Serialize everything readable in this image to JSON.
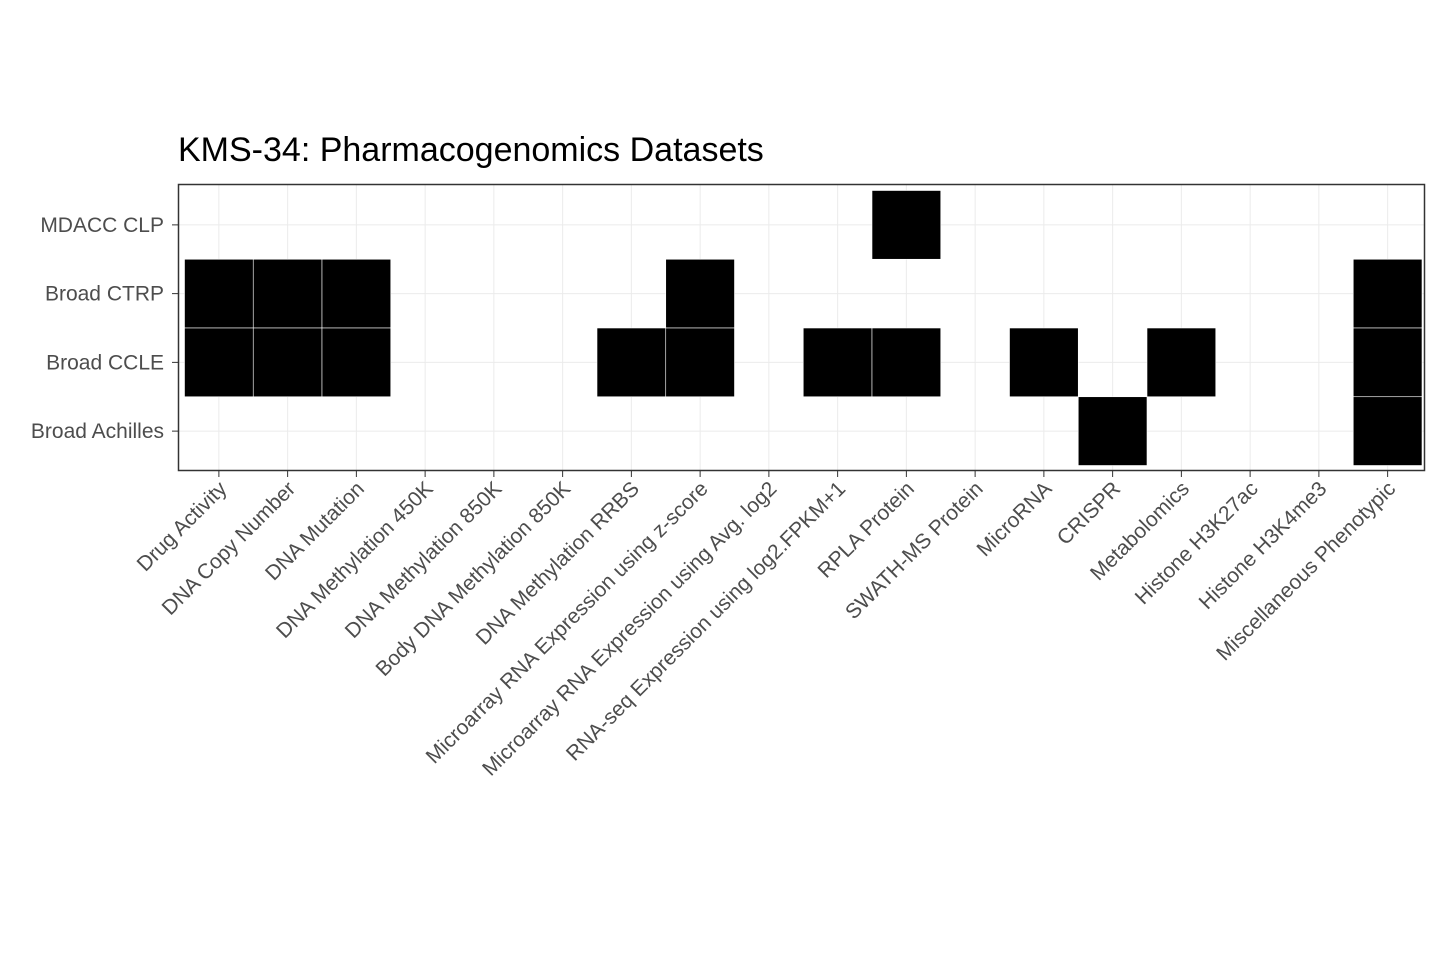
{
  "chart_data": {
    "type": "heatmap",
    "title": "KMS-34: Pharmacogenomics Datasets",
    "xlabel": "",
    "ylabel": "",
    "x_categories": [
      "Drug Activity",
      "DNA Copy Number",
      "DNA Mutation",
      "DNA Methylation 450K",
      "DNA Methylation 850K",
      "Body DNA Methylation 850K",
      "DNA Methylation RRBS",
      "Microarray RNA Expression using z-score",
      "Microarray RNA Expression using Avg. log2",
      "RNA-seq Expression using log2.FPKM+1",
      "RPLA Protein",
      "SWATH-MS Protein",
      "MicroRNA",
      "CRISPR",
      "Metabolomics",
      "Histone H3K27ac",
      "Histone H3K4me3",
      "Miscellaneous Phenotypic"
    ],
    "y_categories": [
      "MDACC CLP",
      "Broad CTRP",
      "Broad CCLE",
      "Broad Achilles"
    ],
    "cells": [
      {
        "row": "MDACC CLP",
        "col": "RPLA Protein"
      },
      {
        "row": "Broad CTRP",
        "col": "Drug Activity"
      },
      {
        "row": "Broad CTRP",
        "col": "DNA Copy Number"
      },
      {
        "row": "Broad CTRP",
        "col": "DNA Mutation"
      },
      {
        "row": "Broad CTRP",
        "col": "Microarray RNA Expression using z-score"
      },
      {
        "row": "Broad CTRP",
        "col": "Miscellaneous Phenotypic"
      },
      {
        "row": "Broad CCLE",
        "col": "Drug Activity"
      },
      {
        "row": "Broad CCLE",
        "col": "DNA Copy Number"
      },
      {
        "row": "Broad CCLE",
        "col": "DNA Mutation"
      },
      {
        "row": "Broad CCLE",
        "col": "DNA Methylation RRBS"
      },
      {
        "row": "Broad CCLE",
        "col": "Microarray RNA Expression using z-score"
      },
      {
        "row": "Broad CCLE",
        "col": "RNA-seq Expression using log2.FPKM+1"
      },
      {
        "row": "Broad CCLE",
        "col": "RPLA Protein"
      },
      {
        "row": "Broad CCLE",
        "col": "MicroRNA"
      },
      {
        "row": "Broad CCLE",
        "col": "Metabolomics"
      },
      {
        "row": "Broad CCLE",
        "col": "Miscellaneous Phenotypic"
      },
      {
        "row": "Broad Achilles",
        "col": "CRISPR"
      },
      {
        "row": "Broad Achilles",
        "col": "Miscellaneous Phenotypic"
      }
    ],
    "fill_color": "#000000",
    "grid": true,
    "legend": "none"
  }
}
